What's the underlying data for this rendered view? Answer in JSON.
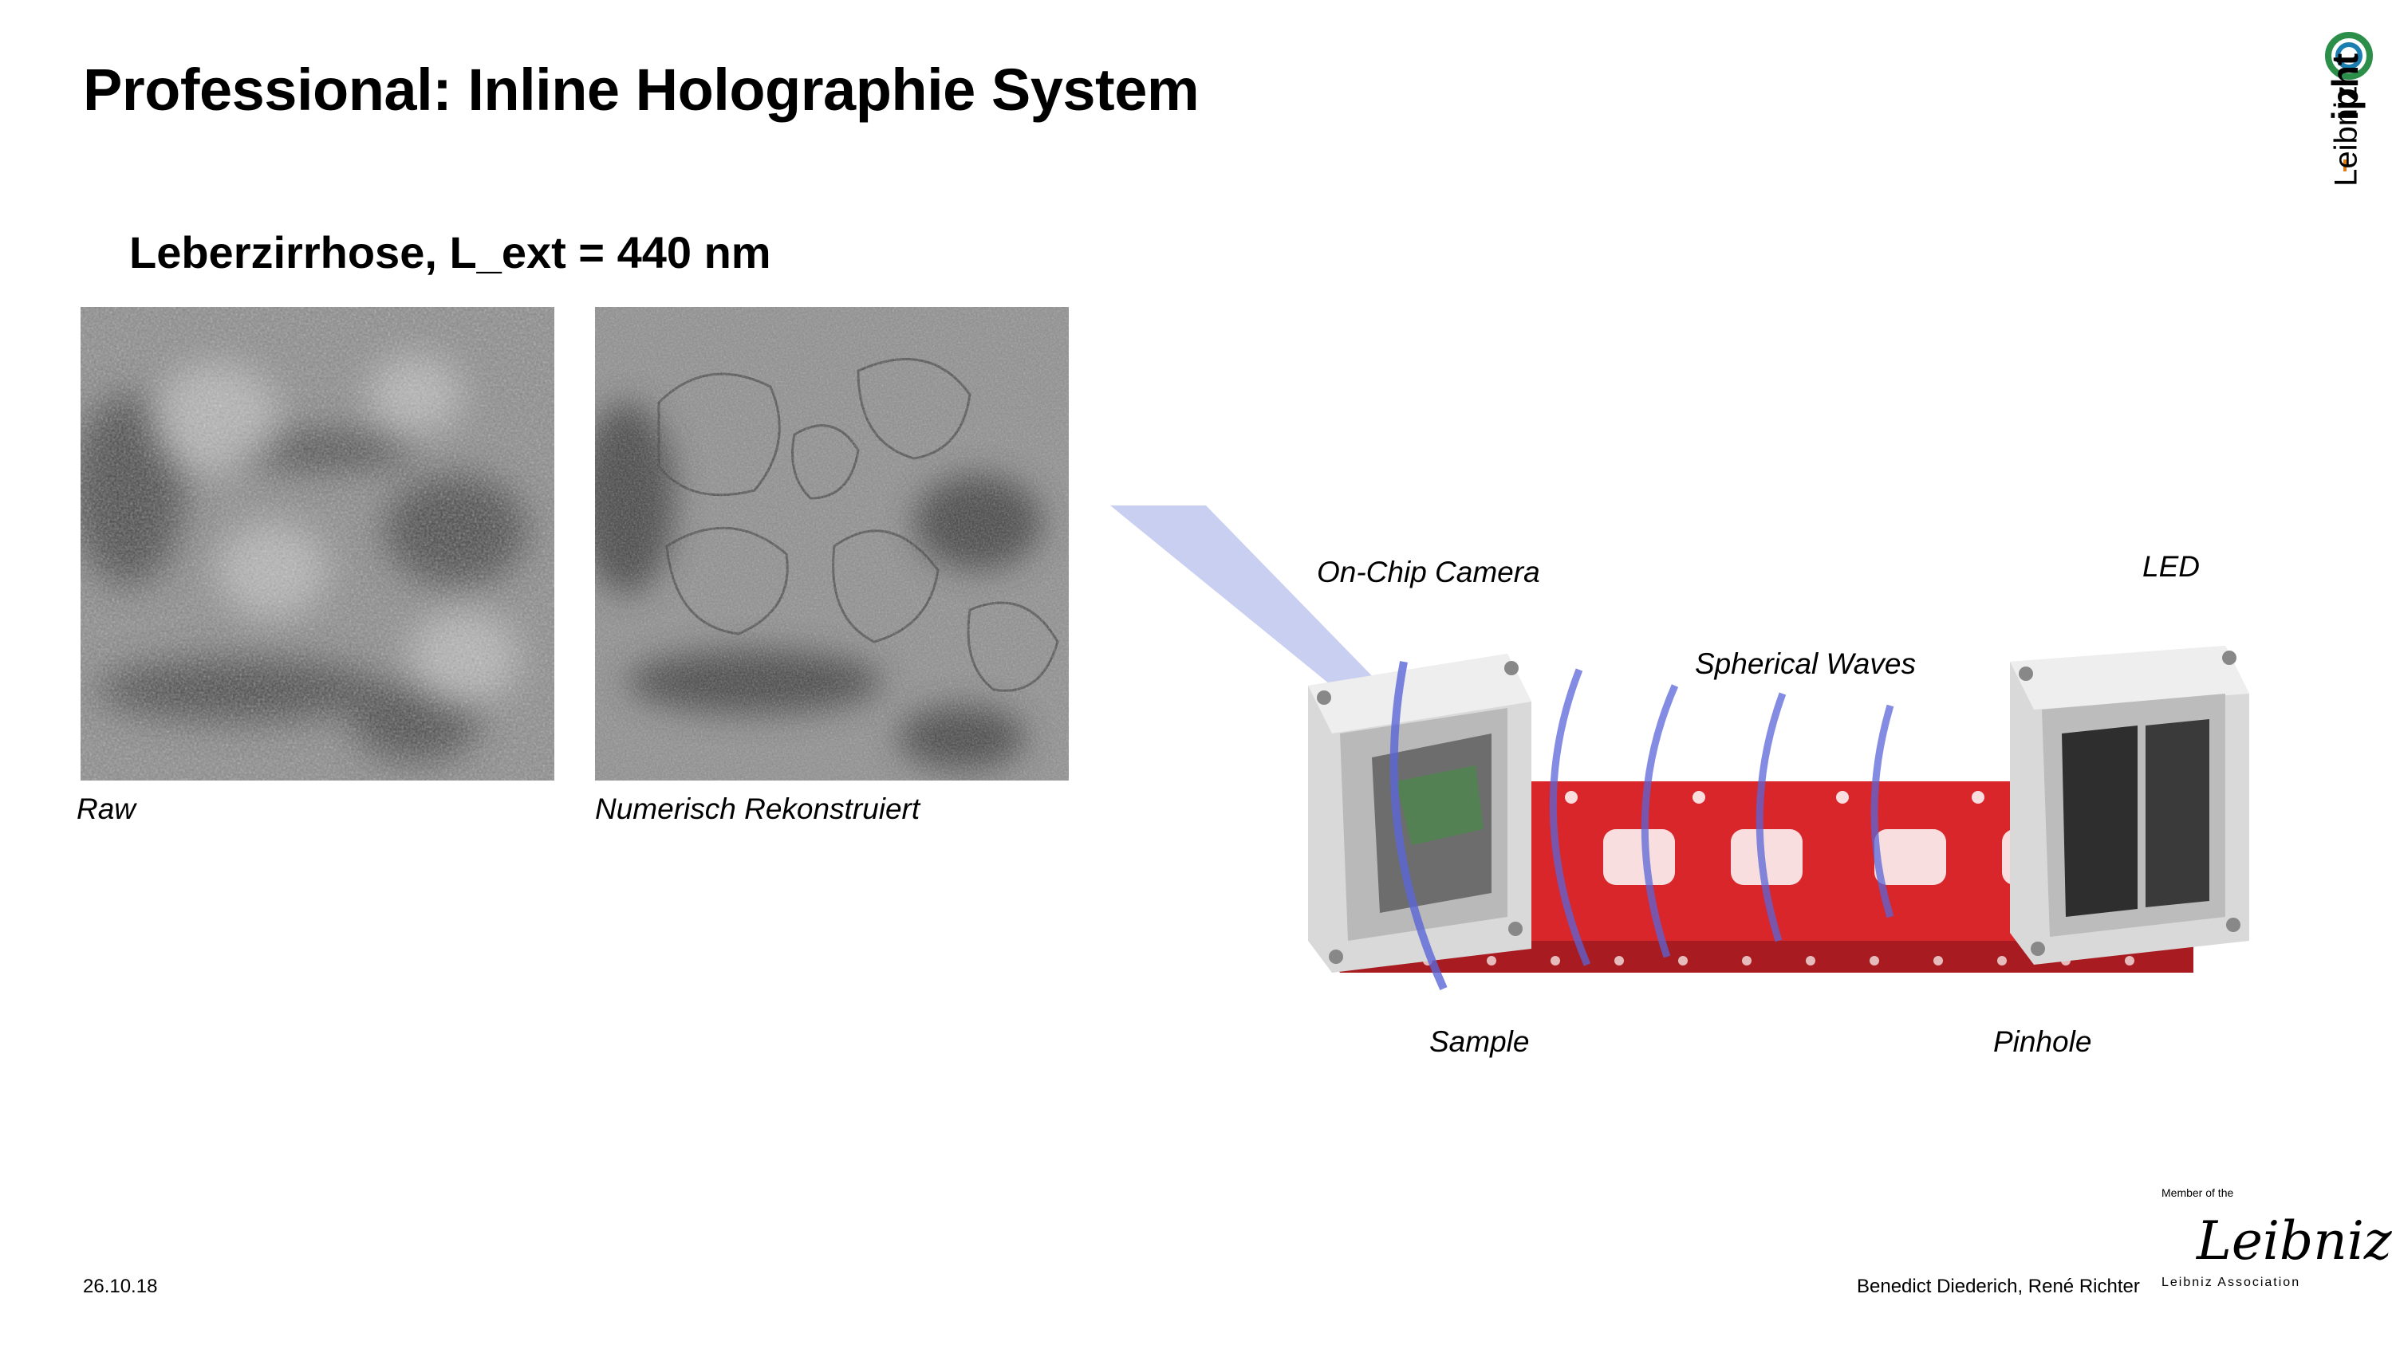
{
  "slide": {
    "title": "Professional: Inline Holographie System",
    "subtitle": "Leberzirrhose, L_ext = 440 nm"
  },
  "images": {
    "raw_caption": "Raw",
    "reconstructed_caption": "Numerisch Rekonstruiert"
  },
  "diagram": {
    "labels": {
      "camera": "On-Chip Camera",
      "led": "LED",
      "waves": "Spherical Waves",
      "sample": "Sample",
      "pinhole": "Pinhole"
    },
    "colors": {
      "rail": "#d8262b",
      "cube": "#dcdcdc",
      "wave": "#5a66d8",
      "beam": "#9aa8e6"
    }
  },
  "footer": {
    "date": "26.10.18",
    "authors": "Benedict Diederich, René Richter"
  },
  "logos": {
    "ipht": {
      "text_main": "ipht",
      "text_prefix": "Leibniz"
    },
    "leibniz": {
      "top": "Member of the",
      "signature": "Leibniz",
      "bottom": "Leibniz Association"
    }
  }
}
